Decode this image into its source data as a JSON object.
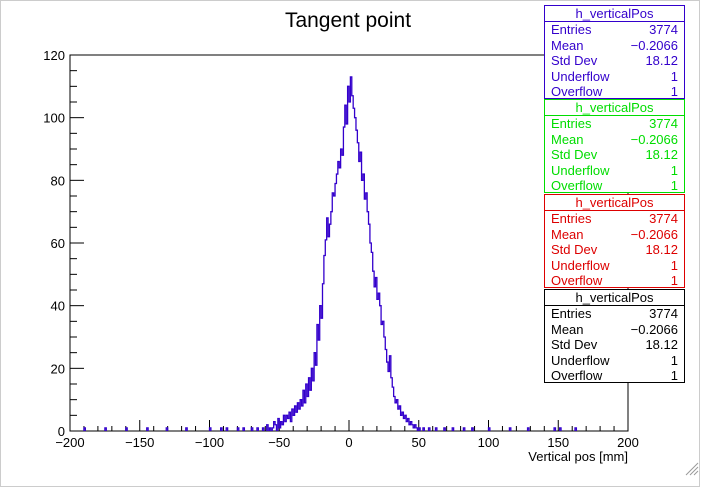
{
  "chart_data": {
    "type": "histogram",
    "title": "Tangent point",
    "xlabel": "Vertical pos [mm]",
    "ylabel": "",
    "xlim": [
      -200,
      200
    ],
    "ylim": [
      0,
      120
    ],
    "x_ticks": [
      -200,
      -150,
      -100,
      -50,
      0,
      50,
      100,
      150,
      200
    ],
    "y_ticks": [
      0,
      20,
      40,
      60,
      80,
      100,
      120
    ],
    "bin_width": 1,
    "line_color": "#3300cc",
    "bins": [
      [
        -190,
        1
      ],
      [
        -175,
        1
      ],
      [
        -160,
        1
      ],
      [
        -145,
        1
      ],
      [
        -131,
        1
      ],
      [
        -117,
        1
      ],
      [
        -100,
        1
      ],
      [
        -92,
        1
      ],
      [
        -88,
        1
      ],
      [
        -80,
        1
      ],
      [
        -76,
        1
      ],
      [
        -70,
        1
      ],
      [
        -66,
        1
      ],
      [
        -62,
        1
      ],
      [
        -59,
        2
      ],
      [
        -57,
        1
      ],
      [
        -55,
        1
      ],
      [
        -54,
        3
      ],
      [
        -53,
        2
      ],
      [
        -51,
        4
      ],
      [
        -50,
        1
      ],
      [
        -49,
        3
      ],
      [
        -48,
        2
      ],
      [
        -47,
        5
      ],
      [
        -46,
        3
      ],
      [
        -45,
        5
      ],
      [
        -44,
        4
      ],
      [
        -43,
        6
      ],
      [
        -42,
        3
      ],
      [
        -41,
        7
      ],
      [
        -40,
        5
      ],
      [
        -39,
        8
      ],
      [
        -38,
        6
      ],
      [
        -37,
        9
      ],
      [
        -36,
        7
      ],
      [
        -35,
        10
      ],
      [
        -34,
        8
      ],
      [
        -33,
        13
      ],
      [
        -32,
        9
      ],
      [
        -31,
        15
      ],
      [
        -30,
        11
      ],
      [
        -29,
        17
      ],
      [
        -28,
        13
      ],
      [
        -27,
        20
      ],
      [
        -26,
        16
      ],
      [
        -25,
        25
      ],
      [
        -24,
        21
      ],
      [
        -23,
        34
      ],
      [
        -22,
        29
      ],
      [
        -21,
        40
      ],
      [
        -20,
        36
      ],
      [
        -19,
        47
      ],
      [
        -18,
        56
      ],
      [
        -17,
        61
      ],
      [
        -16,
        68
      ],
      [
        -15,
        62
      ],
      [
        -14,
        66
      ],
      [
        -13,
        70
      ],
      [
        -12,
        76
      ],
      [
        -11,
        75
      ],
      [
        -10,
        79
      ],
      [
        -9,
        82
      ],
      [
        -8,
        86
      ],
      [
        -7,
        84
      ],
      [
        -6,
        90
      ],
      [
        -5,
        88
      ],
      [
        -4,
        97
      ],
      [
        -3,
        104
      ],
      [
        -2,
        98
      ],
      [
        -1,
        110
      ],
      [
        0,
        105
      ],
      [
        1,
        113
      ],
      [
        2,
        107
      ],
      [
        3,
        103
      ],
      [
        4,
        100
      ],
      [
        5,
        96
      ],
      [
        6,
        92
      ],
      [
        7,
        86
      ],
      [
        8,
        89
      ],
      [
        9,
        80
      ],
      [
        10,
        82
      ],
      [
        11,
        74
      ],
      [
        12,
        76
      ],
      [
        13,
        70
      ],
      [
        14,
        66
      ],
      [
        15,
        60
      ],
      [
        16,
        57
      ],
      [
        17,
        51
      ],
      [
        18,
        46
      ],
      [
        19,
        49
      ],
      [
        20,
        42
      ],
      [
        21,
        44
      ],
      [
        22,
        40
      ],
      [
        23,
        34
      ],
      [
        24,
        35
      ],
      [
        25,
        30
      ],
      [
        26,
        26
      ],
      [
        27,
        22
      ],
      [
        28,
        19
      ],
      [
        29,
        24
      ],
      [
        30,
        17
      ],
      [
        31,
        14
      ],
      [
        32,
        11
      ],
      [
        33,
        9
      ],
      [
        34,
        10
      ],
      [
        35,
        7
      ],
      [
        36,
        8
      ],
      [
        37,
        5
      ],
      [
        38,
        6
      ],
      [
        39,
        4
      ],
      [
        40,
        5
      ],
      [
        41,
        3
      ],
      [
        42,
        4
      ],
      [
        43,
        2
      ],
      [
        44,
        3
      ],
      [
        45,
        2
      ],
      [
        46,
        1
      ],
      [
        47,
        2
      ],
      [
        48,
        1
      ],
      [
        50,
        1
      ],
      [
        53,
        1
      ],
      [
        57,
        1
      ],
      [
        62,
        1
      ],
      [
        68,
        1
      ],
      [
        74,
        1
      ],
      [
        82,
        1
      ],
      [
        88,
        1
      ],
      [
        100,
        1
      ],
      [
        115,
        1
      ],
      [
        128,
        1
      ],
      [
        147,
        1
      ],
      [
        151,
        1
      ],
      [
        162,
        1
      ]
    ]
  },
  "stats_boxes": [
    {
      "title": "h_verticalPos",
      "color": "#3300cc",
      "rows": [
        [
          "Entries",
          "3774"
        ],
        [
          "Mean",
          "−0.2066"
        ],
        [
          "Std Dev",
          "18.12"
        ],
        [
          "Underflow",
          "1"
        ],
        [
          "Overflow",
          "1"
        ]
      ]
    },
    {
      "title": "h_verticalPos",
      "color": "#00dd00",
      "rows": [
        [
          "Entries",
          "3774"
        ],
        [
          "Mean",
          "−0.2066"
        ],
        [
          "Std Dev",
          "18.12"
        ],
        [
          "Underflow",
          "1"
        ],
        [
          "Overflow",
          "1"
        ]
      ]
    },
    {
      "title": "h_verticalPos",
      "color": "#dd0000",
      "rows": [
        [
          "Entries",
          "3774"
        ],
        [
          "Mean",
          "−0.2066"
        ],
        [
          "Std Dev",
          "18.12"
        ],
        [
          "Underflow",
          "1"
        ],
        [
          "Overflow",
          "1"
        ]
      ]
    },
    {
      "title": "h_verticalPos",
      "color": "#000000",
      "rows": [
        [
          "Entries",
          "3774"
        ],
        [
          "Mean",
          "−0.2066"
        ],
        [
          "Std Dev",
          "18.12"
        ],
        [
          "Underflow",
          "1"
        ],
        [
          "Overflow",
          "1"
        ]
      ]
    }
  ]
}
